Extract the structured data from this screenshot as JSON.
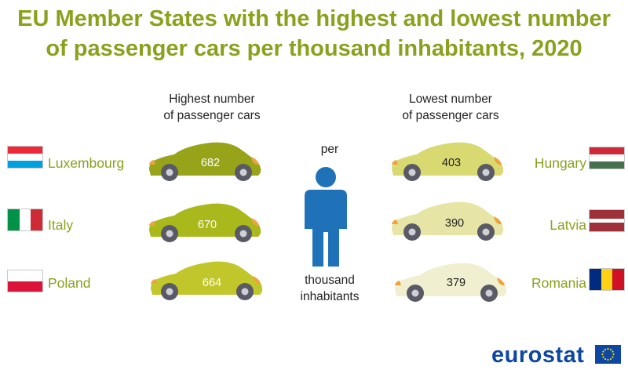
{
  "title_line1": "EU Member States with the highest and lowest number",
  "title_line2": "of passenger cars per thousand inhabitants, 2020",
  "highest": {
    "heading_line1": "Highest number",
    "heading_line2": "of passenger cars",
    "items": [
      {
        "country": "Luxembourg",
        "value": "682",
        "car_color": "#97a419"
      },
      {
        "country": "Italy",
        "value": "670",
        "car_color": "#a9b91c"
      },
      {
        "country": "Poland",
        "value": "664",
        "car_color": "#c1c72b"
      }
    ]
  },
  "lowest": {
    "heading_line1": "Lowest number",
    "heading_line2": "of passenger cars",
    "items": [
      {
        "country": "Hungary",
        "value": "403",
        "car_color": "#d9d971"
      },
      {
        "country": "Latvia",
        "value": "390",
        "car_color": "#e6e5a6"
      },
      {
        "country": "Romania",
        "value": "379",
        "car_color": "#f0efcf"
      }
    ]
  },
  "center": {
    "per": "per",
    "thousand": "thousand",
    "inhabitants": "inhabitants",
    "person_icon": "person-icon",
    "person_color": "#1f72b8"
  },
  "brand": {
    "logo_text": "eurostat",
    "logo_color": "#0e47a1"
  },
  "colors": {
    "title": "#8ba11d",
    "country_text": "#8ba11d",
    "tire": "#5a5a66",
    "light": "#f0a23c"
  },
  "chart_data": {
    "type": "table",
    "unit": "passenger cars per thousand inhabitants",
    "highest": [
      {
        "country": "Luxembourg",
        "value": 682
      },
      {
        "country": "Italy",
        "value": 670
      },
      {
        "country": "Poland",
        "value": 664
      }
    ],
    "lowest": [
      {
        "country": "Hungary",
        "value": 403
      },
      {
        "country": "Latvia",
        "value": 390
      },
      {
        "country": "Romania",
        "value": 379
      }
    ]
  }
}
